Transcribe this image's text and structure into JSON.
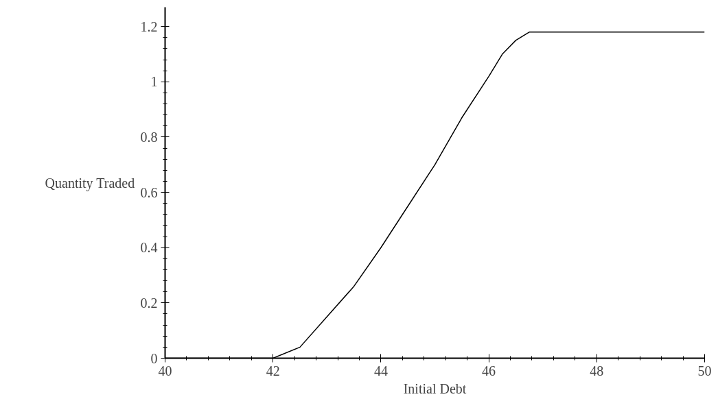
{
  "chart_data": {
    "type": "line",
    "xlabel": "Initial Debt",
    "ylabel": "Quantity Traded",
    "x": [
      40,
      42,
      42.5,
      43,
      43.5,
      44,
      44.5,
      45,
      45.5,
      46,
      46.25,
      46.5,
      46.75,
      50
    ],
    "series": [
      {
        "color": "#000000",
        "values": [
          0,
          0,
          0.04,
          0.15,
          0.26,
          0.4,
          0.55,
          0.7,
          0.87,
          1.02,
          1.1,
          1.15,
          1.18,
          1.18
        ]
      }
    ],
    "xlim": [
      40,
      50
    ],
    "ylim": [
      0,
      1.27
    ],
    "xticks": [
      40,
      42,
      44,
      46,
      48,
      50
    ],
    "yticks": [
      0,
      0.2,
      0.4,
      0.6,
      0.8,
      1,
      1.2
    ],
    "grid": false,
    "marker": "none",
    "line_style": "solid"
  }
}
